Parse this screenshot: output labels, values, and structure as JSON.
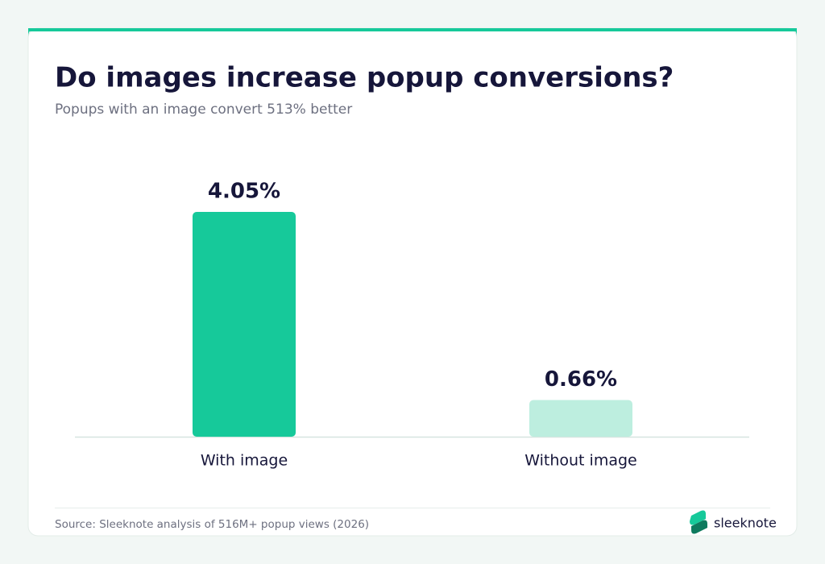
{
  "chart_data": {
    "type": "bar",
    "title": "Do images increase popup conversions?",
    "subtitle": "Popups with an image convert 513% better",
    "categories": [
      "With image",
      "Without image"
    ],
    "values": [
      4.05,
      0.66
    ],
    "value_labels": [
      "4.05%",
      "0.66%"
    ],
    "colors": [
      "#16c99a",
      "#bdeedf"
    ],
    "source": "Source: Sleeknote analysis of 516M+ popup views (2026)",
    "brand": "sleeknote"
  }
}
